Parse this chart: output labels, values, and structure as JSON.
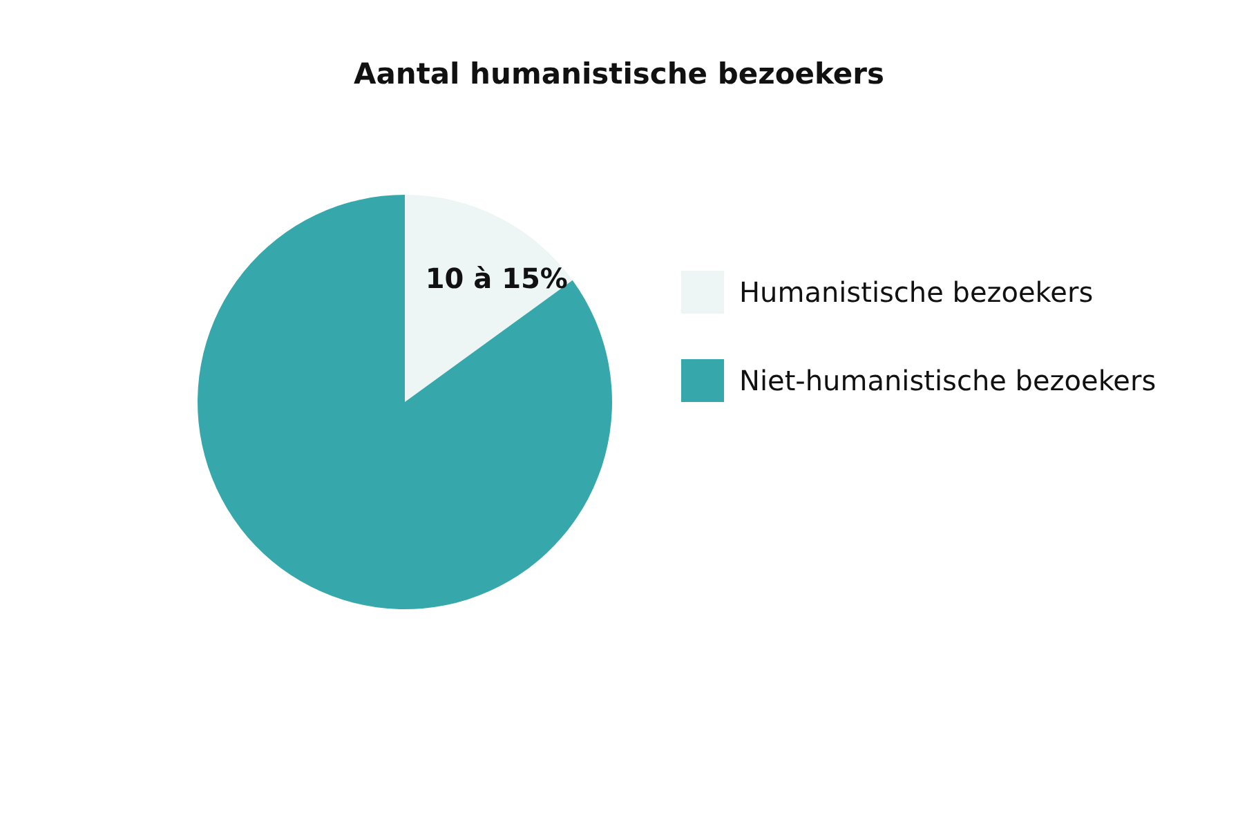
{
  "chart_data": {
    "type": "pie",
    "title": "Aantal humanistische bezoekers",
    "categories": [
      "Humanistische bezoekers",
      "Niet-humanistische bezoekers"
    ],
    "values": [
      15,
      85
    ],
    "colors": [
      "#edf6f5",
      "#36a8ab"
    ],
    "value_labels": [
      "10 à 15%",
      null
    ],
    "legend": "right"
  }
}
